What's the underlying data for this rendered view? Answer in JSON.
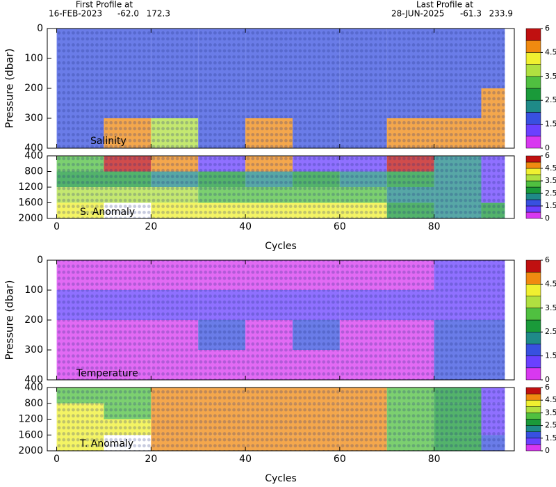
{
  "header": {
    "first_profile": {
      "label": "First Profile at",
      "date": "16-FEB-2023",
      "lat": "-62.0",
      "lon": "172.3"
    },
    "last_profile": {
      "label": "Last Profile at",
      "date": "28-JUN-2025",
      "lat": "-61.3",
      "lon": "233.9"
    }
  },
  "chart_data": [
    {
      "type": "heatmap",
      "title": "Salinity",
      "ylabel": "Pressure (dbar)",
      "xlim": [
        -2,
        97
      ],
      "xticks": [
        0,
        20,
        40,
        60,
        80
      ],
      "ylim": [
        400,
        0
      ],
      "yticks": [
        0,
        100,
        200,
        300,
        400
      ],
      "x_bins": [
        0,
        10,
        20,
        30,
        40,
        50,
        60,
        70,
        80,
        90,
        95
      ],
      "y_bins": [
        0,
        100,
        200,
        300,
        400
      ],
      "values": [
        [
          1.6,
          1.6,
          1.6,
          1.6,
          1.6,
          1.6,
          1.6,
          1.6,
          1.6,
          1.6
        ],
        [
          1.6,
          1.6,
          1.6,
          1.6,
          1.6,
          1.6,
          1.6,
          1.6,
          1.6,
          1.6
        ],
        [
          1.9,
          1.9,
          1.9,
          1.9,
          1.9,
          1.9,
          1.9,
          1.9,
          1.9,
          4.6
        ],
        [
          1.9,
          4.6,
          3.8,
          1.9,
          4.6,
          1.9,
          1.9,
          4.6,
          4.6,
          4.6
        ]
      ],
      "colorbar": {
        "levels": [
          0,
          0.75,
          1.5,
          2,
          2.5,
          3,
          3.5,
          4,
          4.5,
          5.25,
          6
        ],
        "colors": [
          "#d838f0",
          "#6a40ff",
          "#3850e0",
          "#1f8a88",
          "#1a9a3a",
          "#50c040",
          "#b0e040",
          "#f0f030",
          "#f08a10",
          "#c01010"
        ],
        "ticks": [
          0,
          1.5,
          2.5,
          3.5,
          4.5,
          6
        ]
      }
    },
    {
      "type": "heatmap",
      "title": "S. Anomaly",
      "xlabel": "Cycles",
      "xlim": [
        -2,
        97
      ],
      "xticks": [
        0,
        20,
        40,
        60,
        80
      ],
      "ylim": [
        2000,
        400
      ],
      "yticks": [
        400,
        800,
        1200,
        1600,
        2000
      ],
      "x_bins": [
        0,
        10,
        20,
        30,
        40,
        50,
        60,
        70,
        80,
        90,
        95
      ],
      "y_bins": [
        400,
        800,
        1200,
        1600,
        2000
      ],
      "values": [
        [
          3.2,
          5.6,
          5.2,
          1.2,
          5.2,
          1.2,
          1.2,
          5.6,
          2.2,
          0.8
        ],
        [
          2.6,
          2.8,
          2.4,
          2.6,
          2.2,
          2.6,
          2.2,
          2.6,
          2.4,
          0.8
        ],
        [
          3.8,
          3.6,
          3.6,
          3.2,
          3.2,
          3.2,
          3.2,
          2.2,
          2.2,
          0.8
        ],
        [
          4.2,
          null,
          4.2,
          4.2,
          4.2,
          4.2,
          4.2,
          2.6,
          2.4,
          2.6
        ]
      ],
      "colorbar": {
        "levels": [
          0,
          0.75,
          1.5,
          2,
          2.5,
          3,
          3.5,
          4,
          4.5,
          5.25,
          6
        ],
        "colors": [
          "#d838f0",
          "#6a40ff",
          "#3850e0",
          "#1f8a88",
          "#1a9a3a",
          "#50c040",
          "#b0e040",
          "#f0f030",
          "#f08a10",
          "#c01010"
        ],
        "ticks": [
          0,
          1.5,
          2.5,
          3.5,
          4.5,
          6
        ]
      }
    },
    {
      "type": "heatmap",
      "title": "Temperature",
      "ylabel": "Pressure (dbar)",
      "xlim": [
        -2,
        97
      ],
      "xticks": [
        0,
        20,
        40,
        60,
        80
      ],
      "ylim": [
        400,
        0
      ],
      "yticks": [
        0,
        100,
        200,
        300,
        400
      ],
      "x_bins": [
        0,
        10,
        20,
        30,
        40,
        50,
        60,
        70,
        80,
        90,
        95
      ],
      "y_bins": [
        0,
        100,
        200,
        300,
        400
      ],
      "values": [
        [
          0.7,
          0.7,
          0.7,
          0.7,
          0.7,
          0.7,
          0.7,
          0.7,
          0.8,
          1.2
        ],
        [
          1.3,
          1.3,
          1.3,
          1.3,
          1.3,
          1.3,
          1.3,
          1.3,
          1.3,
          1.3
        ],
        [
          0.2,
          0.2,
          0.2,
          1.6,
          0.2,
          1.6,
          0.2,
          0.2,
          1.6,
          1.6
        ],
        [
          0.2,
          0.2,
          0.2,
          0.2,
          0.2,
          0.2,
          0.2,
          0.2,
          1.6,
          1.6
        ]
      ],
      "colorbar": {
        "levels": [
          0,
          0.75,
          1.5,
          2,
          2.5,
          3,
          3.5,
          4,
          4.5,
          5.25,
          6
        ],
        "colors": [
          "#d838f0",
          "#6a40ff",
          "#3850e0",
          "#1f8a88",
          "#1a9a3a",
          "#50c040",
          "#b0e040",
          "#f0f030",
          "#f08a10",
          "#c01010"
        ],
        "ticks": [
          0,
          1.5,
          2.5,
          3.5,
          4.5,
          6
        ]
      }
    },
    {
      "type": "heatmap",
      "title": "T. Anomaly",
      "xlabel": "Cycles",
      "xlim": [
        -2,
        97
      ],
      "xticks": [
        0,
        20,
        40,
        60,
        80
      ],
      "ylim": [
        2000,
        400
      ],
      "yticks": [
        400,
        800,
        1200,
        1600,
        2000
      ],
      "x_bins": [
        0,
        10,
        20,
        30,
        40,
        50,
        60,
        70,
        80,
        90,
        95
      ],
      "y_bins": [
        400,
        800,
        1200,
        1600,
        2000
      ],
      "values": [
        [
          3.2,
          3.2,
          4.6,
          4.6,
          4.6,
          4.6,
          4.6,
          3.2,
          2.6,
          1.2
        ],
        [
          4.2,
          3.4,
          4.6,
          4.6,
          4.6,
          4.6,
          4.6,
          3.4,
          2.6,
          1.2
        ],
        [
          4.2,
          4.2,
          4.6,
          4.6,
          4.6,
          4.6,
          4.6,
          3.4,
          2.6,
          1.2
        ],
        [
          4.2,
          null,
          4.6,
          4.6,
          4.6,
          4.6,
          4.6,
          3.2,
          2.6,
          1.6
        ]
      ],
      "colorbar": {
        "levels": [
          0,
          0.75,
          1.5,
          2,
          2.5,
          3,
          3.5,
          4,
          4.5,
          5.25,
          6
        ],
        "colors": [
          "#d838f0",
          "#6a40ff",
          "#3850e0",
          "#1f8a88",
          "#1a9a3a",
          "#50c040",
          "#b0e040",
          "#f0f030",
          "#f08a10",
          "#c01010"
        ],
        "ticks": [
          0,
          1.5,
          2.5,
          3.5,
          4.5,
          6
        ]
      }
    }
  ]
}
